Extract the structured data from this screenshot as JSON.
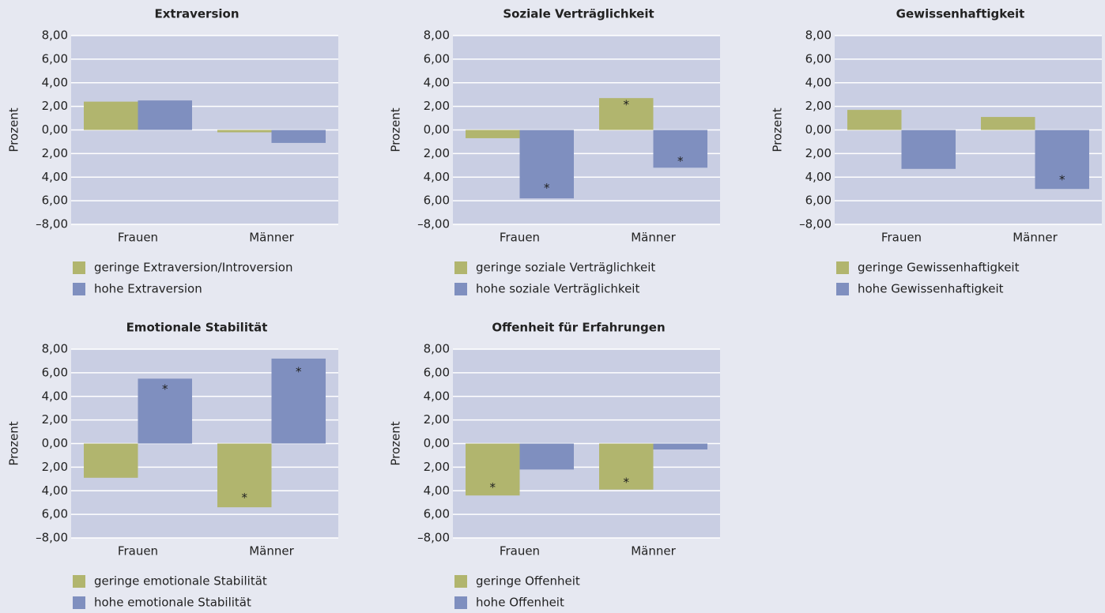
{
  "chart_data": [
    {
      "type": "bar",
      "title": "Extraversion",
      "ylabel": "Prozent",
      "categories": [
        "Frauen",
        "Männer"
      ],
      "ylim": [
        -8,
        8
      ],
      "yticks": [
        {
          "value": 8,
          "label": "8,00"
        },
        {
          "value": 6,
          "label": "6,00"
        },
        {
          "value": 4,
          "label": "4,00"
        },
        {
          "value": 2,
          "label": "2,00"
        },
        {
          "value": 0,
          "label": "0,00"
        },
        {
          "value": -2,
          "label": "2,00"
        },
        {
          "value": -4,
          "label": "4,00"
        },
        {
          "value": -6,
          "label": "6,00"
        },
        {
          "value": -8,
          "label": "–8,00"
        }
      ],
      "grid": true,
      "series": [
        {
          "name": "geringe Extraversion/Introversion",
          "color": "#b1b56e",
          "values": [
            2.4,
            -0.2
          ],
          "markers": [
            null,
            null
          ]
        },
        {
          "name": "hohe Extraversion",
          "color": "#7f8fbf",
          "values": [
            2.5,
            -1.1
          ],
          "markers": [
            null,
            null
          ]
        }
      ]
    },
    {
      "type": "bar",
      "title": "Soziale Verträglichkeit",
      "ylabel": "Prozent",
      "categories": [
        "Frauen",
        "Männer"
      ],
      "ylim": [
        -8,
        8
      ],
      "yticks": [
        {
          "value": 8,
          "label": "8,00"
        },
        {
          "value": 6,
          "label": "6,00"
        },
        {
          "value": 4,
          "label": "4,00"
        },
        {
          "value": 2,
          "label": "2,00"
        },
        {
          "value": 0,
          "label": "0,00"
        },
        {
          "value": -2,
          "label": "2,00"
        },
        {
          "value": -4,
          "label": "4,00"
        },
        {
          "value": -6,
          "label": "6,00"
        },
        {
          "value": -8,
          "label": "–8,00"
        }
      ],
      "grid": true,
      "series": [
        {
          "name": "geringe soziale Verträglichkeit",
          "color": "#b1b56e",
          "values": [
            -0.7,
            2.7
          ],
          "markers": [
            null,
            "*"
          ]
        },
        {
          "name": "hohe soziale Verträglichkeit",
          "color": "#7f8fbf",
          "values": [
            -5.8,
            -3.2
          ],
          "markers": [
            "*",
            "*"
          ]
        }
      ]
    },
    {
      "type": "bar",
      "title": "Gewissenhaftigkeit",
      "ylabel": "Prozent",
      "categories": [
        "Frauen",
        "Männer"
      ],
      "ylim": [
        -8,
        8
      ],
      "yticks": [
        {
          "value": 8,
          "label": "8,00"
        },
        {
          "value": 6,
          "label": "6,00"
        },
        {
          "value": 4,
          "label": "4,00"
        },
        {
          "value": 2,
          "label": "2,00"
        },
        {
          "value": 0,
          "label": "0,00"
        },
        {
          "value": -2,
          "label": "2,00"
        },
        {
          "value": -4,
          "label": "4,00"
        },
        {
          "value": -6,
          "label": "6,00"
        },
        {
          "value": -8,
          "label": "–8,00"
        }
      ],
      "grid": true,
      "series": [
        {
          "name": "geringe Gewissenhaftigkeit",
          "color": "#b1b56e",
          "values": [
            1.7,
            1.1
          ],
          "markers": [
            null,
            null
          ]
        },
        {
          "name": "hohe Gewissenhaftigkeit",
          "color": "#7f8fbf",
          "values": [
            -3.3,
            -5.0
          ],
          "markers": [
            null,
            "*"
          ]
        }
      ]
    },
    {
      "type": "bar",
      "title": "Emotionale Stabilität",
      "ylabel": "Prozent",
      "categories": [
        "Frauen",
        "Männer"
      ],
      "ylim": [
        -8,
        8
      ],
      "yticks": [
        {
          "value": 8,
          "label": "8,00"
        },
        {
          "value": 6,
          "label": "6,00"
        },
        {
          "value": 4,
          "label": "4,00"
        },
        {
          "value": 2,
          "label": "2,00"
        },
        {
          "value": 0,
          "label": "0,00"
        },
        {
          "value": -2,
          "label": "2,00"
        },
        {
          "value": -4,
          "label": "4,00"
        },
        {
          "value": -6,
          "label": "6,00"
        },
        {
          "value": -8,
          "label": "–8,00"
        }
      ],
      "grid": true,
      "series": [
        {
          "name": "geringe emotionale Stabilität",
          "color": "#b1b56e",
          "values": [
            -2.9,
            -5.4
          ],
          "markers": [
            null,
            "*"
          ]
        },
        {
          "name": "hohe emotionale Stabilität",
          "color": "#7f8fbf",
          "values": [
            5.5,
            7.2
          ],
          "markers": [
            "*",
            "*"
          ]
        }
      ]
    },
    {
      "type": "bar",
      "title": "Offenheit für Erfahrungen",
      "ylabel": "Prozent",
      "categories": [
        "Frauen",
        "Männer"
      ],
      "ylim": [
        -8,
        8
      ],
      "yticks": [
        {
          "value": 8,
          "label": "8,00"
        },
        {
          "value": 6,
          "label": "6,00"
        },
        {
          "value": 4,
          "label": "4,00"
        },
        {
          "value": 2,
          "label": "2,00"
        },
        {
          "value": 0,
          "label": "0,00"
        },
        {
          "value": -2,
          "label": "2,00"
        },
        {
          "value": -4,
          "label": "4,00"
        },
        {
          "value": -6,
          "label": "6,00"
        },
        {
          "value": -8,
          "label": "–8,00"
        }
      ],
      "grid": true,
      "series": [
        {
          "name": "geringe Offenheit",
          "color": "#b1b56e",
          "values": [
            -4.4,
            -3.9
          ],
          "markers": [
            "*",
            "*"
          ]
        },
        {
          "name": "hohe Offenheit",
          "color": "#7f8fbf",
          "values": [
            -2.2,
            -0.5
          ],
          "markers": [
            null,
            null
          ]
        }
      ]
    }
  ]
}
